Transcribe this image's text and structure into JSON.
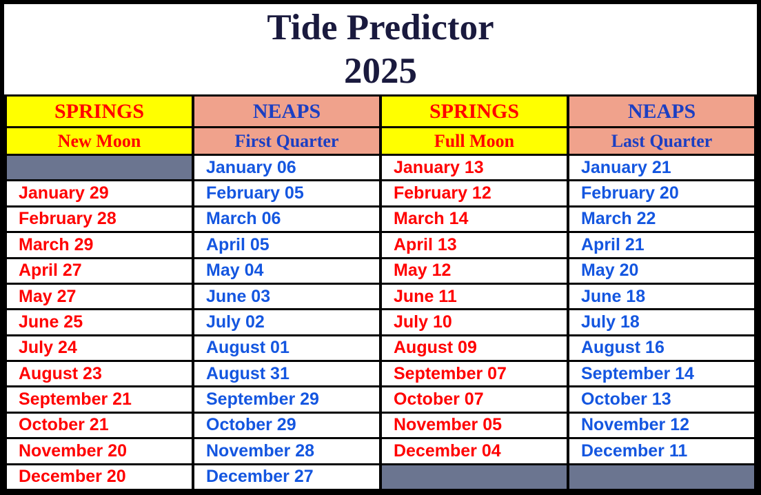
{
  "title": {
    "line1": "Tide Predictor",
    "line2": "2025"
  },
  "columns": [
    {
      "tide": "SPRINGS",
      "phase": "New Moon",
      "theme": "springs"
    },
    {
      "tide": "NEAPS",
      "phase": "First Quarter",
      "theme": "neaps"
    },
    {
      "tide": "SPRINGS",
      "phase": "Full Moon",
      "theme": "springs"
    },
    {
      "tide": "NEAPS",
      "phase": "Last Quarter",
      "theme": "neaps"
    }
  ],
  "rows": [
    [
      "",
      "January 06",
      "January 13",
      "January 21"
    ],
    [
      "January 29",
      "February 05",
      "February 12",
      "February 20"
    ],
    [
      "February 28",
      "March 06",
      "March 14",
      "March 22"
    ],
    [
      "March 29",
      "April 05",
      "April 13",
      "April 21"
    ],
    [
      "April 27",
      "May 04",
      "May 12",
      "May 20"
    ],
    [
      "May 27",
      "June 03",
      "June 11",
      "June 18"
    ],
    [
      "June 25",
      "July 02",
      "July 10",
      "July 18"
    ],
    [
      "July 24",
      "August 01",
      "August 09",
      "August 16"
    ],
    [
      "August 23",
      "August 31",
      "September 07",
      "September 14"
    ],
    [
      "September 21",
      "September 29",
      "October 07",
      "October 13"
    ],
    [
      "October 21",
      "October 29",
      "November 05",
      "November 12"
    ],
    [
      "November 20",
      "November 28",
      "December 04",
      "December 11"
    ],
    [
      "December 20",
      "December 27",
      "",
      ""
    ]
  ],
  "colors": {
    "navy": "#1a1a3e",
    "red": "#ff0000",
    "yellow": "#ffff00",
    "salmon": "#f0a28c",
    "header-blue": "#1c3fc2",
    "date-blue": "#1456e0",
    "gray": "#6b7590",
    "border": "#000000"
  }
}
